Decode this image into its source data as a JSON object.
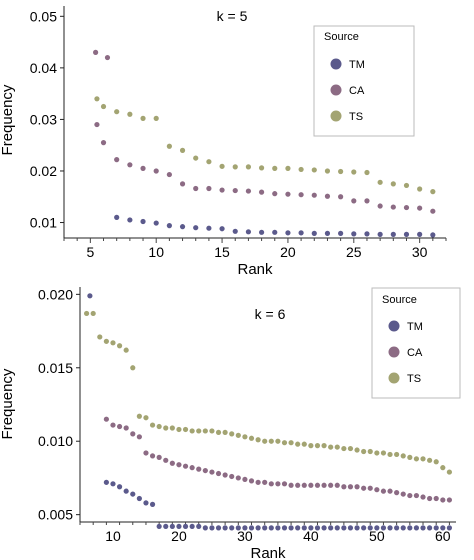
{
  "chart_data": [
    {
      "type": "scatter",
      "annotation": "k = 5",
      "xlabel": "Rank",
      "ylabel": "Frequency",
      "xlim": [
        3,
        32
      ],
      "ylim": [
        0.007,
        0.052
      ],
      "xticks": [
        5,
        10,
        15,
        20,
        25,
        30
      ],
      "yticks": [
        0.01,
        0.02,
        0.03,
        0.04,
        0.05
      ],
      "ytick_labels": [
        "0.01",
        "0.02",
        "0.03",
        "0.04",
        "0.05"
      ],
      "legend": {
        "title": "Source",
        "placement": "top-right"
      },
      "grid": false,
      "series": [
        {
          "name": "TM",
          "color": "#5b5a8c",
          "x": [
            7,
            8,
            9,
            10,
            11,
            12,
            13,
            14,
            15,
            16,
            17,
            18,
            19,
            20,
            21,
            22,
            23,
            24,
            25,
            26,
            27,
            28,
            29,
            30,
            31
          ],
          "y": [
            0.011,
            0.0105,
            0.0102,
            0.0099,
            0.0094,
            0.0092,
            0.009,
            0.0089,
            0.0088,
            0.0083,
            0.0082,
            0.0081,
            0.0081,
            0.008,
            0.008,
            0.0079,
            0.0079,
            0.0079,
            0.0078,
            0.0078,
            0.0077,
            0.0077,
            0.0077,
            0.0077,
            0.0076
          ]
        },
        {
          "name": "CA",
          "color": "#8c6b84",
          "x": [
            5.4,
            5.5,
            6,
            6.3,
            7,
            8,
            9,
            10,
            11,
            12,
            13,
            14,
            15,
            16,
            17,
            18,
            19,
            20,
            21,
            22,
            23,
            24,
            25,
            26,
            27,
            28,
            29,
            30,
            31
          ],
          "y": [
            0.043,
            0.029,
            0.0255,
            0.042,
            0.0222,
            0.0212,
            0.0205,
            0.02,
            0.0193,
            0.0175,
            0.0166,
            0.0166,
            0.0163,
            0.0162,
            0.0161,
            0.0159,
            0.0156,
            0.0155,
            0.0154,
            0.0153,
            0.0151,
            0.015,
            0.0142,
            0.0142,
            0.0132,
            0.013,
            0.0129,
            0.0128,
            0.0122
          ]
        },
        {
          "name": "TS",
          "color": "#a3a472",
          "x": [
            5.5,
            6,
            7,
            8,
            9,
            10,
            11,
            12,
            13,
            14,
            15,
            16,
            17,
            18,
            19,
            20,
            21,
            22,
            23,
            24,
            25,
            26,
            27,
            28,
            29,
            30,
            31
          ],
          "y": [
            0.034,
            0.0325,
            0.0315,
            0.031,
            0.0302,
            0.0302,
            0.0248,
            0.024,
            0.0225,
            0.0218,
            0.0209,
            0.0208,
            0.0208,
            0.0206,
            0.0205,
            0.0205,
            0.0203,
            0.0202,
            0.02,
            0.0199,
            0.0198,
            0.0197,
            0.0178,
            0.0175,
            0.0172,
            0.0165,
            0.016
          ]
        }
      ]
    },
    {
      "type": "scatter",
      "annotation": "k = 6",
      "xlabel": "Rank",
      "ylabel": "Frequency",
      "xlim": [
        5,
        62
      ],
      "ylim": [
        0.0045,
        0.0205
      ],
      "xticks": [
        10,
        20,
        30,
        40,
        50,
        60
      ],
      "yticks": [
        0.005,
        0.01,
        0.015,
        0.02
      ],
      "ytick_labels": [
        "0.005",
        "0.010",
        "0.015",
        "0.020"
      ],
      "legend": {
        "title": "Source",
        "placement": "top-right"
      },
      "grid": false,
      "series": [
        {
          "name": "TM",
          "color": "#5b5a8c",
          "x": [
            6.5,
            9,
            10,
            11,
            12,
            13,
            14,
            15,
            16,
            17,
            18,
            19,
            20,
            21,
            22,
            23,
            24,
            25,
            26,
            27,
            28,
            29,
            30,
            31,
            32,
            33,
            34,
            35,
            36,
            37,
            38,
            39,
            40,
            41,
            42,
            43,
            44,
            45,
            46,
            47,
            48,
            49,
            50,
            51,
            52,
            53,
            54,
            55,
            56,
            57,
            58,
            59,
            60,
            61
          ],
          "y": [
            0.0199,
            0.0072,
            0.0071,
            0.0069,
            0.0066,
            0.0064,
            0.0061,
            0.0058,
            0.0057,
            0.0042,
            0.0042,
            0.0042,
            0.0042,
            0.0042,
            0.0042,
            0.0042,
            0.0041,
            0.0041,
            0.0041,
            0.0041,
            0.0041,
            0.0041,
            0.0041,
            0.0041,
            0.0041,
            0.0041,
            0.0041,
            0.0041,
            0.0041,
            0.0041,
            0.0041,
            0.0041,
            0.0041,
            0.0041,
            0.0041,
            0.0041,
            0.0041,
            0.0041,
            0.0041,
            0.0041,
            0.0041,
            0.0041,
            0.0041,
            0.0041,
            0.0041,
            0.0041,
            0.0041,
            0.0041,
            0.0041,
            0.0041,
            0.0041,
            0.0041,
            0.0041,
            0.0041
          ]
        },
        {
          "name": "CA",
          "color": "#8c6b84",
          "x": [
            9,
            10,
            11,
            12,
            13,
            14,
            15,
            16,
            17,
            18,
            19,
            20,
            21,
            22,
            23,
            24,
            25,
            26,
            27,
            28,
            29,
            30,
            31,
            32,
            33,
            34,
            35,
            36,
            37,
            38,
            39,
            40,
            41,
            42,
            43,
            44,
            45,
            46,
            47,
            48,
            49,
            50,
            51,
            52,
            53,
            54,
            55,
            56,
            57,
            58,
            59,
            60,
            61
          ],
          "y": [
            0.0115,
            0.0111,
            0.011,
            0.0109,
            0.0105,
            0.0103,
            0.0092,
            0.009,
            0.0089,
            0.0087,
            0.0085,
            0.0084,
            0.0083,
            0.0082,
            0.0081,
            0.008,
            0.0079,
            0.0078,
            0.0077,
            0.0076,
            0.0075,
            0.0074,
            0.0073,
            0.0072,
            0.0072,
            0.0071,
            0.0071,
            0.0071,
            0.007,
            0.007,
            0.007,
            0.007,
            0.007,
            0.007,
            0.007,
            0.007,
            0.0069,
            0.0069,
            0.0069,
            0.0068,
            0.0068,
            0.0067,
            0.0066,
            0.0066,
            0.0065,
            0.0064,
            0.0063,
            0.0063,
            0.0062,
            0.0061,
            0.0061,
            0.006,
            0.006
          ]
        },
        {
          "name": "TS",
          "color": "#a3a472",
          "x": [
            6,
            7,
            8,
            9,
            10,
            11,
            12,
            13,
            14,
            15,
            16,
            17,
            18,
            19,
            20,
            21,
            22,
            23,
            24,
            25,
            26,
            27,
            28,
            29,
            30,
            31,
            32,
            33,
            34,
            35,
            36,
            37,
            38,
            39,
            40,
            41,
            42,
            43,
            44,
            45,
            46,
            47,
            48,
            49,
            50,
            51,
            52,
            53,
            54,
            55,
            56,
            57,
            58,
            59,
            60,
            61
          ],
          "y": [
            0.0187,
            0.0187,
            0.0171,
            0.0168,
            0.0167,
            0.0165,
            0.0162,
            0.015,
            0.0117,
            0.0116,
            0.0111,
            0.011,
            0.0109,
            0.0109,
            0.0108,
            0.0108,
            0.0107,
            0.0107,
            0.0107,
            0.0107,
            0.0106,
            0.0106,
            0.0105,
            0.0104,
            0.0103,
            0.0102,
            0.0101,
            0.01,
            0.01,
            0.01,
            0.0099,
            0.0099,
            0.0098,
            0.0098,
            0.0097,
            0.0097,
            0.0097,
            0.0096,
            0.0096,
            0.0095,
            0.0095,
            0.0094,
            0.0093,
            0.0093,
            0.0092,
            0.0092,
            0.0091,
            0.0091,
            0.009,
            0.0089,
            0.0088,
            0.0088,
            0.0087,
            0.0086,
            0.0082,
            0.0079
          ]
        }
      ]
    }
  ]
}
